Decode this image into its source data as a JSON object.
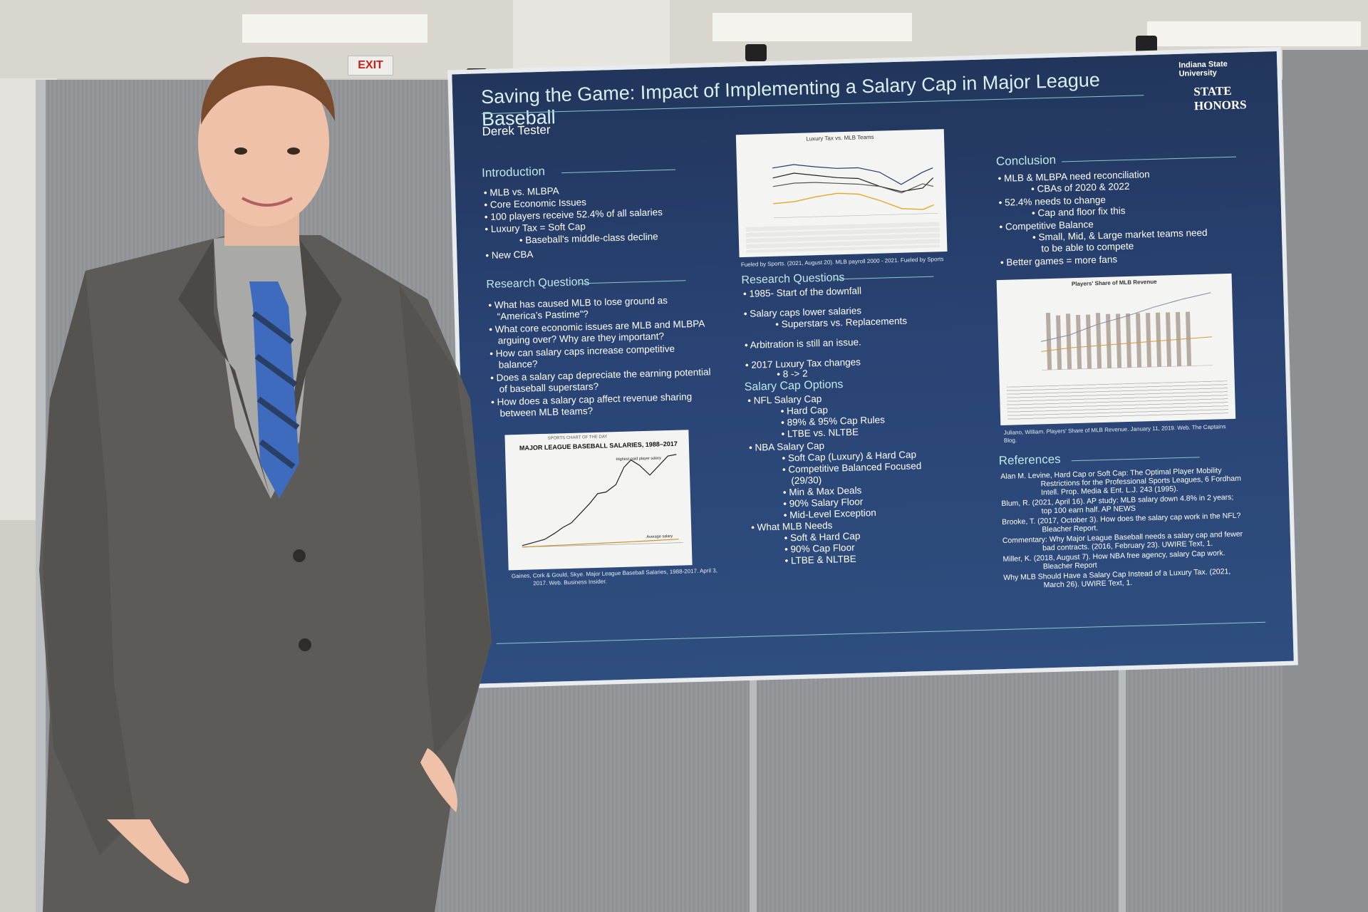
{
  "exit_sign": "EXIT",
  "poster": {
    "title": "Saving the Game: Impact of Implementing a Salary Cap in Major League Baseball",
    "author": "Derek Tester",
    "logo": {
      "university": "Indiana State University",
      "program": "STATE HONORS"
    },
    "introduction": {
      "heading": "Introduction",
      "items": [
        "MLB vs. MLBPA",
        "Core Economic Issues",
        "100 players receive 52.4% of all salaries",
        "Luxury Tax = Soft Cap",
        "Baseball's middle-class decline",
        "New CBA"
      ]
    },
    "research_questions_left": {
      "heading": "Research Questions",
      "items": [
        "What has caused MLB to lose ground as",
        "“America’s Pastime”?",
        "What core economic issues are MLB and MLBPA",
        "arguing over? Why are they important?",
        "How can salary caps increase competitive",
        "balance?",
        "Does a salary cap depreciate the earning potential",
        "of baseball superstars?",
        "How does a salary cap affect revenue sharing",
        "between MLB teams?"
      ]
    },
    "salaries_chart": {
      "brand": "SPORTS CHART OF THE DAY",
      "title": "MAJOR LEAGUE BASEBALL SALARIES, 1988–2017",
      "label_high": "Highest-paid player salary",
      "label_avg": "Average salary",
      "caption1": "Gaines, Cork & Gould, Skye. Major League Baseball Salaries, 1988-2017. April 3,",
      "caption2": "2017. Web. Business Insider."
    },
    "luxury_chart": {
      "title": "Luxury Tax vs. MLB Teams",
      "caption": "Fueled by Sports. (2021, August 20). MLB payroll 2000 - 2021. Fueled by Sports"
    },
    "research_questions_mid": {
      "heading": "Research Questions",
      "items": [
        "1985- Start of the downfall",
        "Salary caps lower salaries",
        "Superstars vs. Replacements",
        "Arbitration is still an issue.",
        "2017 Luxury Tax changes",
        "8 -> 2"
      ]
    },
    "salary_cap_options": {
      "heading": "Salary Cap Options",
      "items": [
        "NFL Salary Cap",
        "Hard Cap",
        "89% & 95% Cap Rules",
        "LTBE vs. NLTBE",
        "NBA Salary Cap",
        "Soft Cap (Luxury) & Hard Cap",
        "Competitive Balanced Focused",
        "(29/30)",
        "Min & Max Deals",
        "90% Salary Floor",
        "Mid-Level Exception",
        "What MLB Needs",
        "Soft & Hard Cap",
        "90% Cap Floor",
        "LTBE & NLTBE"
      ]
    },
    "conclusion": {
      "heading": "Conclusion",
      "items": [
        "MLB & MLBPA need reconciliation",
        "CBAs of 2020 & 2022",
        "52.4% needs to change",
        "Cap and floor fix this",
        "Competitive Balance",
        "Small, Mid, & Large market teams need",
        "to be able to compete",
        "Better games = more fans"
      ]
    },
    "revenue_chart": {
      "title": "Players' Share of MLB Revenue",
      "caption1": "Juliano, William. Players' Share of MLB Revenue. January 11, 2019. Web. The Captains",
      "caption2": "Blog."
    },
    "references": {
      "heading": "References",
      "items": [
        "Alan M. Levine, Hard Cap or Soft Cap: The Optimal Player Mobility",
        "Restrictions for the Professional Sports Leagues, 6 Fordham",
        "Intell. Prop. Media & Ent. L.J. 243 (1995).",
        "Blum, R. (2021, April 16). AP study: MLB salary down 4.8% in 2 years;",
        "top 100 earn half. AP NEWS",
        "Brooke, T. (2017, October 3). How does the salary cap work in the NFL?",
        "Bleacher Report.",
        "Commentary: Why Major League Baseball needs a salary cap and fewer",
        "bad contracts. (2016, February 23). UWIRE Text, 1.",
        "Miller, K. (2018, August 7). How NBA free agency, salary Cap work.",
        "Bleacher Report",
        "Why MLB Should Have a Salary Cap Instead of a Luxury Tax. (2021,",
        "March 26). UWIRE Text, 1."
      ]
    }
  }
}
